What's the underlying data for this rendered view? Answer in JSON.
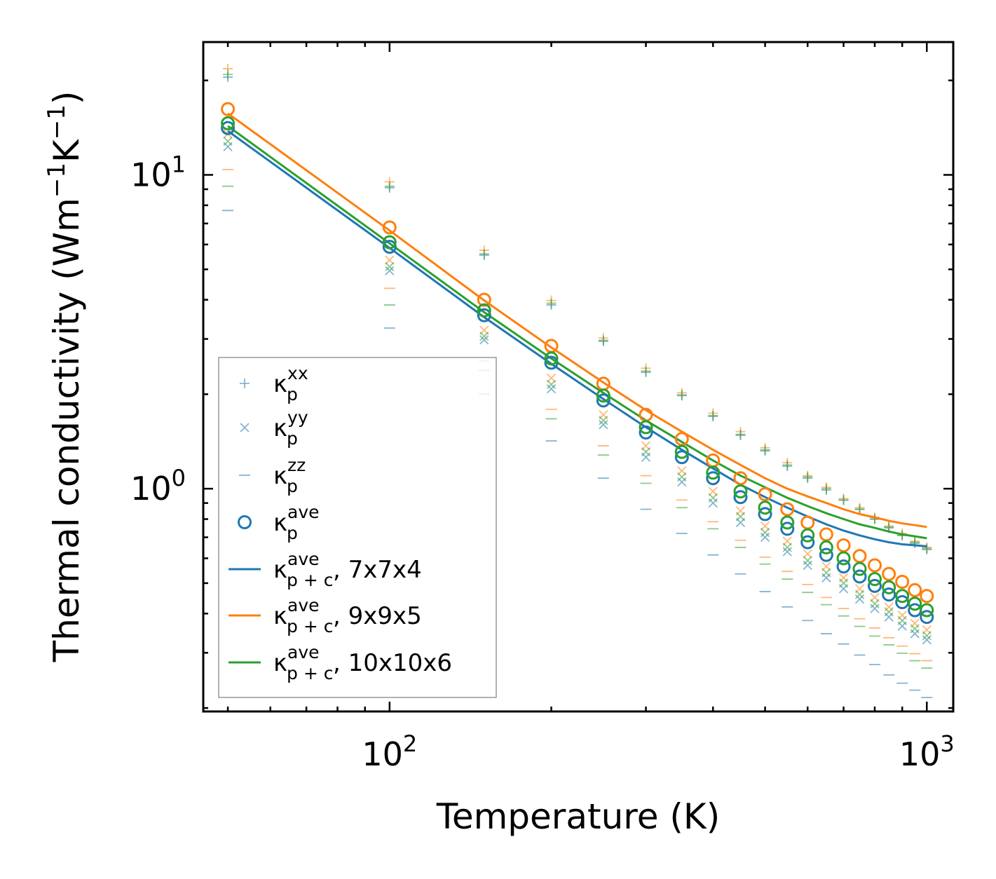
{
  "chart_data": {
    "type": "scatter",
    "xscale": "log",
    "yscale": "log",
    "xlabel": "Temperature (K)",
    "ylabel": "Thermal conductivity (Wm",
    "ylabel_sup1": "−1",
    "ylabel_mid": "K",
    "ylabel_sup2": "−1",
    "ylabel_end": ")",
    "xlim": [
      45,
      1120
    ],
    "ylim": [
      0.195,
      26.5
    ],
    "x_ticks": [
      {
        "value": 100,
        "base": "10",
        "exp": "2"
      },
      {
        "value": 1000,
        "base": "10",
        "exp": "3"
      }
    ],
    "y_ticks": [
      {
        "value": 1,
        "base": "10",
        "exp": "0"
      },
      {
        "value": 10,
        "base": "10",
        "exp": "1"
      }
    ],
    "x": [
      50,
      100,
      150,
      200,
      250,
      300,
      350,
      400,
      450,
      500,
      550,
      600,
      650,
      700,
      750,
      800,
      850,
      900,
      950,
      1000
    ],
    "colors": {
      "7x7x4": "#1f77b4",
      "9x9x5": "#ff7f0e",
      "10x10x6": "#2ca02c"
    },
    "series": [
      {
        "name": "κp xx",
        "marker": "+",
        "grid": "7x7x4",
        "values": [
          20.5,
          9.1,
          5.55,
          3.85,
          2.95,
          2.35,
          1.98,
          1.7,
          1.48,
          1.32,
          1.18,
          1.08,
          0.99,
          0.92,
          0.86,
          0.8,
          0.75,
          0.71,
          0.67,
          0.64
        ]
      },
      {
        "name": "κp xx",
        "marker": "+",
        "grid": "9x9x5",
        "values": [
          21.8,
          9.5,
          5.75,
          3.98,
          3.02,
          2.42,
          2.02,
          1.74,
          1.52,
          1.35,
          1.21,
          1.1,
          1.01,
          0.93,
          0.87,
          0.81,
          0.76,
          0.72,
          0.68,
          0.65
        ]
      },
      {
        "name": "κp xx",
        "marker": "+",
        "grid": "10x10x6",
        "values": [
          20.9,
          9.2,
          5.6,
          3.9,
          2.97,
          2.37,
          1.99,
          1.71,
          1.49,
          1.33,
          1.19,
          1.09,
          1.0,
          0.92,
          0.86,
          0.8,
          0.755,
          0.71,
          0.675,
          0.645
        ]
      },
      {
        "name": "κp yy",
        "marker": "x",
        "grid": "7x7x4",
        "values": [
          12.3,
          4.95,
          2.98,
          2.08,
          1.6,
          1.26,
          1.05,
          0.9,
          0.78,
          0.7,
          0.63,
          0.57,
          0.52,
          0.48,
          0.445,
          0.415,
          0.39,
          0.365,
          0.345,
          0.33
        ]
      },
      {
        "name": "κp yy",
        "marker": "x",
        "grid": "9x9x5",
        "values": [
          13.5,
          5.35,
          3.2,
          2.25,
          1.72,
          1.37,
          1.14,
          0.98,
          0.85,
          0.76,
          0.68,
          0.62,
          0.565,
          0.52,
          0.48,
          0.45,
          0.42,
          0.395,
          0.372,
          0.355
        ]
      },
      {
        "name": "κp yy",
        "marker": "x",
        "grid": "10x10x6",
        "values": [
          12.8,
          5.1,
          3.06,
          2.15,
          1.65,
          1.31,
          1.09,
          0.935,
          0.815,
          0.725,
          0.65,
          0.59,
          0.54,
          0.5,
          0.46,
          0.43,
          0.405,
          0.38,
          0.358,
          0.34
        ]
      },
      {
        "name": "κp zz",
        "marker": "_",
        "grid": "7x7x4",
        "values": [
          7.7,
          3.25,
          2.0,
          1.42,
          1.08,
          0.86,
          0.72,
          0.615,
          0.535,
          0.47,
          0.42,
          0.38,
          0.345,
          0.32,
          0.295,
          0.275,
          0.255,
          0.24,
          0.228,
          0.216
        ]
      },
      {
        "name": "κp zz",
        "marker": "_",
        "grid": "9x9x5",
        "values": [
          10.4,
          4.35,
          2.55,
          1.79,
          1.37,
          1.1,
          0.92,
          0.785,
          0.685,
          0.605,
          0.545,
          0.495,
          0.45,
          0.415,
          0.385,
          0.36,
          0.335,
          0.315,
          0.298,
          0.283
        ]
      },
      {
        "name": "κp zz",
        "marker": "_",
        "grid": "10x10x6",
        "values": [
          9.2,
          3.85,
          2.38,
          1.67,
          1.28,
          1.04,
          0.87,
          0.745,
          0.65,
          0.575,
          0.515,
          0.467,
          0.427,
          0.393,
          0.364,
          0.339,
          0.318,
          0.299,
          0.283,
          0.268
        ]
      },
      {
        "name": "κp ave",
        "marker": "o",
        "grid": "7x7x4",
        "values": [
          14.1,
          5.9,
          3.57,
          2.52,
          1.91,
          1.51,
          1.26,
          1.08,
          0.94,
          0.83,
          0.745,
          0.675,
          0.615,
          0.565,
          0.525,
          0.49,
          0.46,
          0.435,
          0.41,
          0.39
        ]
      },
      {
        "name": "κp ave",
        "marker": "o",
        "grid": "9x9x5",
        "values": [
          16.2,
          6.8,
          4.0,
          2.85,
          2.16,
          1.72,
          1.44,
          1.23,
          1.08,
          0.96,
          0.86,
          0.78,
          0.715,
          0.66,
          0.61,
          0.57,
          0.535,
          0.505,
          0.475,
          0.455
        ]
      },
      {
        "name": "κp ave",
        "marker": "o",
        "grid": "10x10x6",
        "values": [
          14.6,
          6.1,
          3.7,
          2.6,
          1.98,
          1.57,
          1.31,
          1.125,
          0.98,
          0.87,
          0.78,
          0.71,
          0.65,
          0.6,
          0.555,
          0.515,
          0.485,
          0.455,
          0.43,
          0.41
        ]
      },
      {
        "name": "κp+c ave, 7x7x4",
        "type": "line",
        "grid": "7x7x4",
        "values": [
          13.8,
          5.85,
          3.52,
          2.5,
          1.93,
          1.57,
          1.33,
          1.16,
          1.03,
          0.94,
          0.87,
          0.815,
          0.77,
          0.735,
          0.71,
          0.69,
          0.675,
          0.665,
          0.66,
          0.655
        ]
      },
      {
        "name": "κp+c ave, 9x9x5",
        "type": "line",
        "grid": "9x9x5",
        "values": [
          15.7,
          6.65,
          3.98,
          2.82,
          2.18,
          1.78,
          1.52,
          1.33,
          1.19,
          1.08,
          1.0,
          0.945,
          0.9,
          0.86,
          0.83,
          0.81,
          0.79,
          0.775,
          0.765,
          0.755
        ]
      },
      {
        "name": "κp+c ave, 10x10x6",
        "type": "line",
        "grid": "10x10x6",
        "values": [
          14.3,
          6.05,
          3.65,
          2.6,
          2.02,
          1.65,
          1.41,
          1.23,
          1.1,
          1.01,
          0.935,
          0.88,
          0.835,
          0.8,
          0.77,
          0.75,
          0.73,
          0.715,
          0.705,
          0.695
        ]
      }
    ],
    "legend": {
      "location": "lower-left",
      "entries": [
        {
          "symbol": "κ",
          "sub": "p",
          "sup": "xx",
          "suffix": ""
        },
        {
          "symbol": "κ",
          "sub": "p",
          "sup": "yy",
          "suffix": ""
        },
        {
          "symbol": "κ",
          "sub": "p",
          "sup": "zz",
          "suffix": ""
        },
        {
          "symbol": "κ",
          "sub": "p",
          "sup": "ave",
          "suffix": ""
        },
        {
          "symbol": "κ",
          "sub": "p + c",
          "sup": "ave",
          "suffix": ", 7x7x4"
        },
        {
          "symbol": "κ",
          "sub": "p + c",
          "sup": "ave",
          "suffix": ", 9x9x5"
        },
        {
          "symbol": "κ",
          "sub": "p + c",
          "sup": "ave",
          "suffix": ", 10x10x6"
        }
      ]
    }
  }
}
